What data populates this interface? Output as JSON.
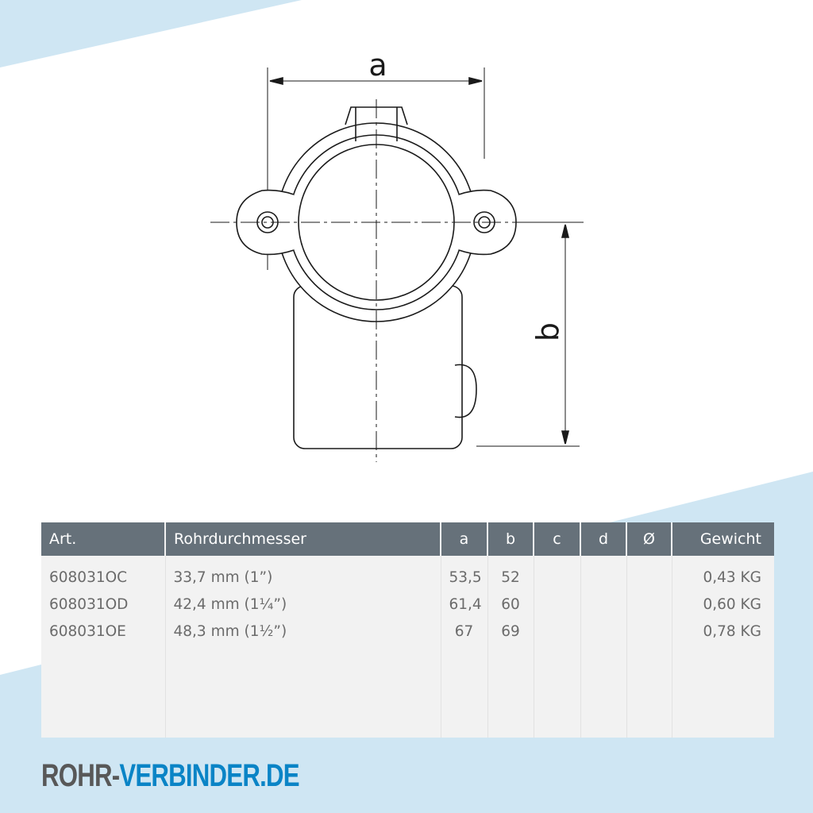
{
  "colors": {
    "accent_blue": "#0a84c6",
    "background_blue": "#cfe6f3",
    "header_gray": "#66717a",
    "logo_gray": "#585858"
  },
  "drawing": {
    "dim_a": "a",
    "dim_b": "b"
  },
  "table": {
    "headers": [
      "Art.",
      "Rohrdurchmesser",
      "a",
      "b",
      "c",
      "d",
      "Ø",
      "Gewicht"
    ],
    "rows": [
      [
        "608031OC",
        "33,7 mm (1”)",
        "53,5",
        "52",
        "",
        "",
        "",
        "0,43 KG"
      ],
      [
        "608031OD",
        "42,4 mm (1¼”)",
        "61,4",
        "60",
        "",
        "",
        "",
        "0,60 KG"
      ],
      [
        "608031OE",
        "48,3 mm (1½”)",
        "67",
        "69",
        "",
        "",
        "",
        "0,78 KG"
      ]
    ]
  },
  "logo": {
    "part1": "ROHR-",
    "part2": "VERBINDER.DE"
  }
}
